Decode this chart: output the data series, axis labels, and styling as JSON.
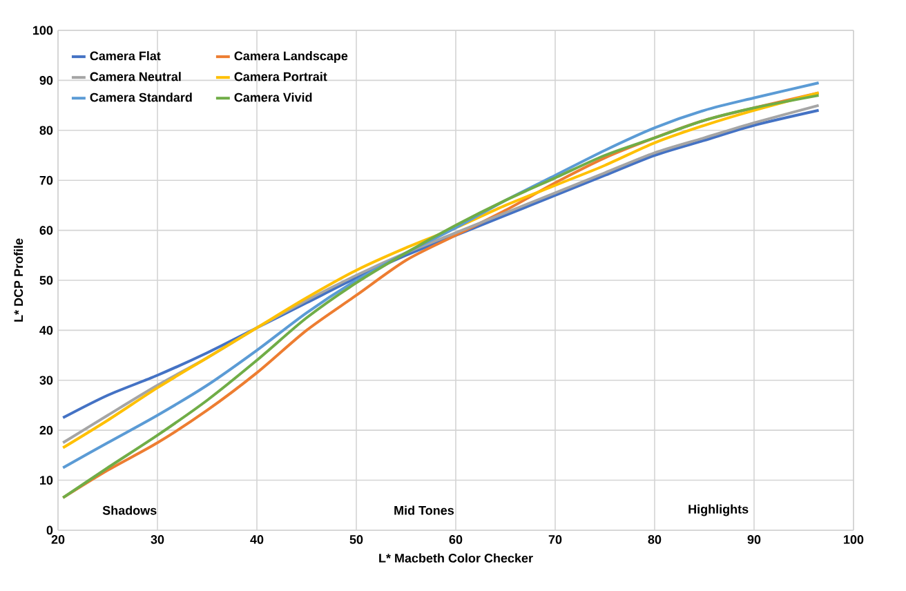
{
  "chart_data": {
    "type": "line",
    "xlabel": "L* Macbeth Color Checker",
    "ylabel": "L* DCP Profile",
    "x": [
      20.5,
      25,
      30,
      35,
      40,
      45,
      50,
      55,
      60,
      65,
      70,
      75,
      80,
      85,
      90,
      96.5
    ],
    "series": [
      {
        "name": "Camera Flat",
        "color": "#4472c4",
        "values": [
          22.5,
          27,
          31,
          35.5,
          40.5,
          45.5,
          50.5,
          55,
          59,
          63,
          67,
          71,
          75,
          78,
          81,
          84
        ]
      },
      {
        "name": "Camera Landscape",
        "color": "#ed7d31",
        "values": [
          6.5,
          12,
          17.5,
          24,
          31.5,
          40,
          47,
          54,
          59,
          64,
          69.5,
          74.5,
          78.5,
          82,
          84.5,
          87.5
        ]
      },
      {
        "name": "Camera Neutral",
        "color": "#a5a5a5",
        "values": [
          17.5,
          23,
          29,
          34.5,
          40.5,
          46,
          51,
          55.5,
          59.5,
          63.5,
          67.5,
          71.5,
          75.5,
          78.5,
          81.5,
          85
        ]
      },
      {
        "name": "Camera Portrait",
        "color": "#ffc000",
        "values": [
          16.5,
          22,
          28.5,
          34.5,
          40.5,
          46.5,
          52,
          56.5,
          60.5,
          65,
          69,
          73,
          77.5,
          81,
          84,
          87.5
        ]
      },
      {
        "name": "Camera Standard",
        "color": "#5b9bd5",
        "values": [
          12.5,
          17.5,
          23,
          29,
          36,
          43.5,
          50,
          55.5,
          60.5,
          66,
          71,
          76,
          80.5,
          84,
          86.5,
          89.5
        ]
      },
      {
        "name": "Camera Vivid",
        "color": "#70ad47",
        "values": [
          6.5,
          12.5,
          19,
          26,
          34,
          42.5,
          49.5,
          55.5,
          61,
          66,
          70.5,
          75,
          78.5,
          82,
          84.5,
          87
        ]
      }
    ],
    "xlim": [
      20,
      100
    ],
    "xticks": [
      20,
      30,
      40,
      50,
      60,
      70,
      80,
      90,
      100
    ],
    "ylim": [
      0,
      100
    ],
    "yticks": [
      0,
      10,
      20,
      30,
      40,
      50,
      60,
      70,
      80,
      90,
      100
    ],
    "annotations": [
      "Shadows",
      "Mid Tones",
      "Highlights"
    ],
    "grid": true,
    "legend": "top left",
    "marker": "none",
    "line_style": "solid"
  }
}
